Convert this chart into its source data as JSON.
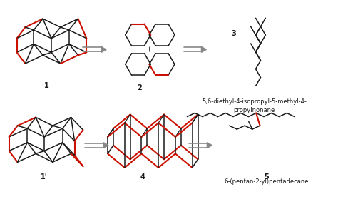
{
  "bg_color": "#ffffff",
  "text_color": "#1a1a1a",
  "red_color": "#cc1100",
  "line_color": "#1a1a1a",
  "arrow_color": "#888888",
  "labels": {
    "1": "1",
    "2": "2",
    "3": "3",
    "1p": "1'",
    "4": "4",
    "5": "5"
  },
  "caption_top": "5,6-diethyl-4-isopropyl-5-methyl-4-\npropylnonane",
  "caption_bot": "6-(pentan-2-yl)pentadecane",
  "label_fontsize": 7,
  "caption_fontsize": 6
}
